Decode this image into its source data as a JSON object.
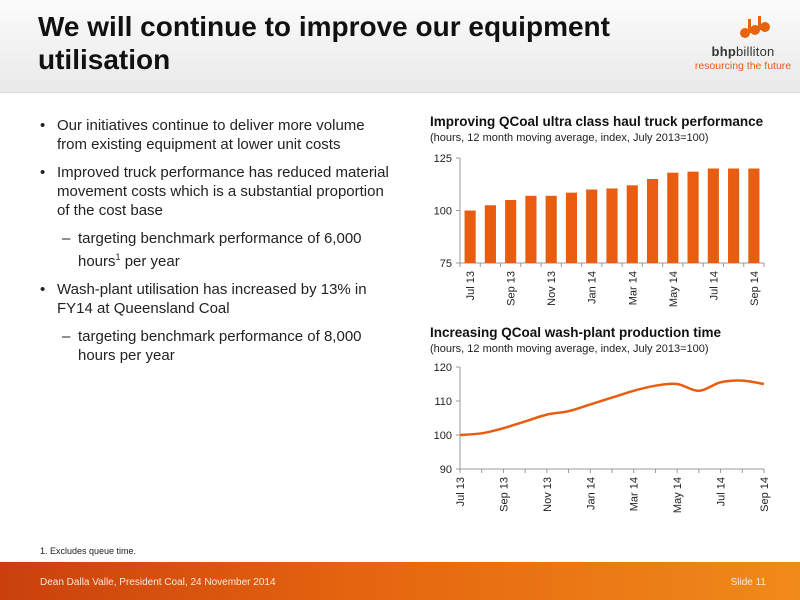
{
  "header": {
    "title": "We will continue to improve our equipment utilisation",
    "logo_brand_bold": "bhp",
    "logo_brand": "billiton",
    "logo_tagline": "resourcing the future"
  },
  "bullets": {
    "b1": "Our initiatives continue to deliver more volume from existing equipment at lower unit costs",
    "b2": "Improved truck performance has reduced material movement costs which is a substantial proportion of the cost base",
    "b2_sub_dash": "–",
    "b2_sub_pre": "targeting benchmark performance of 6,000 hours",
    "b2_sub_sup": "1",
    "b2_sub_post": " per year",
    "b3": "Wash-plant utilisation has increased by 13% in FY14 at Queensland Coal",
    "b3_sub_dash": "–",
    "b3_sub": "targeting benchmark performance of 8,000 hours per year"
  },
  "footnote": "1.  Excludes queue time.",
  "footer": {
    "left": "Dean Dalla Valle, President Coal, 24 November 2014",
    "right": "Slide 11"
  },
  "colors": {
    "accent": "#e5650f",
    "series": "#e85d10",
    "axis": "#999999"
  },
  "chart_data": [
    {
      "type": "bar",
      "title": "Improving QCoal ultra class haul truck performance",
      "subtitle": "(hours, 12 month moving average, index, July 2013=100)",
      "categories": [
        "Jul 13",
        "Aug 13",
        "Sep 13",
        "Oct 13",
        "Nov 13",
        "Dec 13",
        "Jan 14",
        "Feb 14",
        "Mar 14",
        "Apr 14",
        "May 14",
        "Jun 14",
        "Jul 14",
        "Aug 14",
        "Sep 14"
      ],
      "tick_labels": [
        "Jul 13",
        "Sep 13",
        "Nov 13",
        "Jan 14",
        "Mar 14",
        "May 14",
        "Jul 14",
        "Sep 14"
      ],
      "values": [
        100,
        102.5,
        105,
        107,
        107,
        108.5,
        110,
        110.5,
        112,
        115,
        118,
        118.5,
        120,
        120,
        120
      ],
      "ylim": [
        75,
        125
      ],
      "yticks": [
        75,
        100,
        125
      ],
      "grid": false,
      "xlabel": "",
      "ylabel": ""
    },
    {
      "type": "line",
      "title": "Increasing QCoal wash-plant production time",
      "subtitle": "(hours, 12 month moving average, index, July 2013=100)",
      "categories": [
        "Jul 13",
        "Aug 13",
        "Sep 13",
        "Oct 13",
        "Nov 13",
        "Dec 13",
        "Jan 14",
        "Feb 14",
        "Mar 14",
        "Apr 14",
        "May 14",
        "Jun 14",
        "Jul 14",
        "Aug 14",
        "Sep 14"
      ],
      "tick_labels": [
        "Jul 13",
        "Sep 13",
        "Nov 13",
        "Jan 14",
        "Mar 14",
        "May 14",
        "Jul 14",
        "Sep 14"
      ],
      "values": [
        100,
        100.5,
        102,
        104,
        106,
        107,
        109,
        111,
        113,
        114.5,
        115,
        113,
        115.5,
        116,
        115
      ],
      "ylim": [
        90,
        120
      ],
      "yticks": [
        90,
        100,
        110,
        120
      ],
      "grid": false,
      "xlabel": "",
      "ylabel": ""
    }
  ]
}
